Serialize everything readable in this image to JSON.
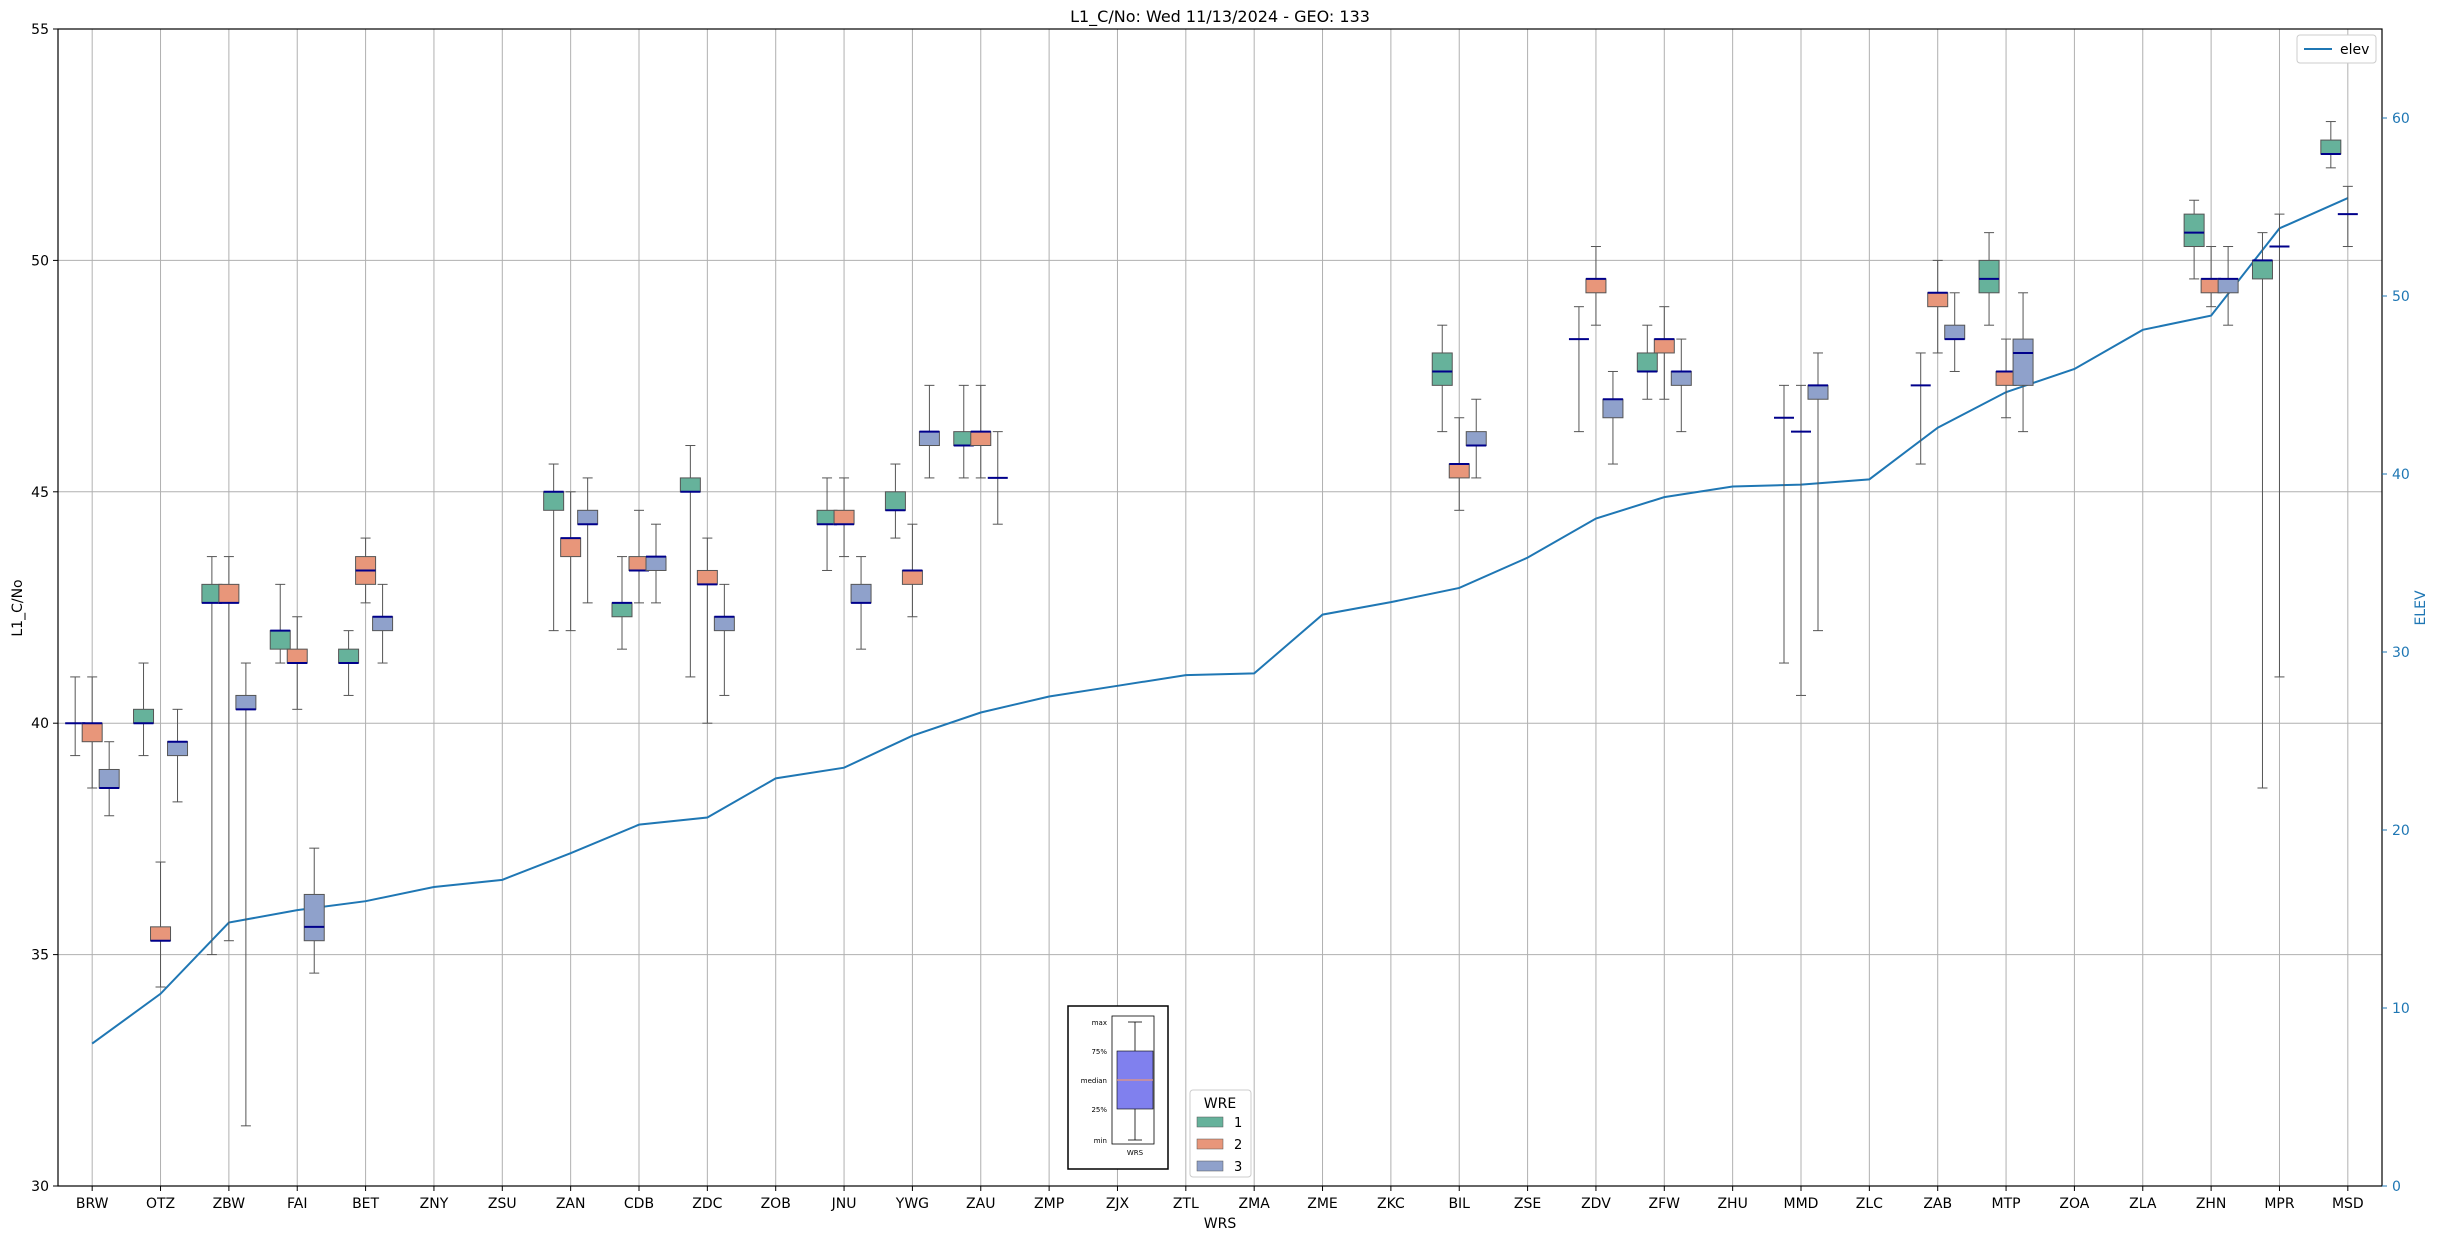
{
  "chart_data": {
    "type": "box",
    "title": "L1_C/No: Wed 11/13/2024 - GEO: 133",
    "xlabel": "WRS",
    "ylabel": "L1_C/No",
    "y2label": "ELEV",
    "ylim": [
      30,
      55
    ],
    "y2lim": [
      0,
      65
    ],
    "yticks": [
      30,
      35,
      40,
      45,
      50,
      55
    ],
    "y2ticks": [
      0,
      10,
      20,
      30,
      40,
      50,
      60
    ],
    "grid": true,
    "categories": [
      "BRW",
      "OTZ",
      "ZBW",
      "FAI",
      "BET",
      "ZNY",
      "ZSU",
      "ZAN",
      "CDB",
      "ZDC",
      "ZOB",
      "JNU",
      "YWG",
      "ZAU",
      "ZMP",
      "ZJX",
      "ZTL",
      "ZMA",
      "ZME",
      "ZKC",
      "BIL",
      "ZSE",
      "ZDV",
      "ZFW",
      "ZHU",
      "MMD",
      "ZLC",
      "ZAB",
      "MTP",
      "ZOA",
      "ZLA",
      "ZHN",
      "MPR",
      "MSD"
    ],
    "elev_series": {
      "name": "elev",
      "values": [
        8,
        10.8,
        14.8,
        15.5,
        16,
        16.8,
        17.2,
        18.7,
        20.3,
        20.7,
        22.9,
        23.5,
        25.3,
        26.6,
        27.5,
        28.1,
        28.7,
        28.8,
        32.1,
        32.8,
        33.6,
        35.3,
        37.5,
        38.7,
        39.3,
        39.4,
        39.7,
        42.6,
        44.6,
        45.9,
        48.1,
        48.9,
        53.8,
        55.5
      ]
    },
    "wre_series": [
      {
        "wre": "1",
        "color": "#66b29b",
        "boxes": [
          {
            "cat": "BRW",
            "min": 39.3,
            "q1": 40,
            "med": 40,
            "q3": 40,
            "max": 41
          },
          {
            "cat": "OTZ",
            "min": 39.3,
            "q1": 40,
            "med": 40,
            "q3": 40.3,
            "max": 41.3
          },
          {
            "cat": "ZBW",
            "min": 35,
            "q1": 42.6,
            "med": 42.6,
            "q3": 43,
            "max": 43.6
          },
          {
            "cat": "FAI",
            "min": 41.3,
            "q1": 41.6,
            "med": 42,
            "q3": 42,
            "max": 43
          },
          {
            "cat": "BET",
            "min": 40.6,
            "q1": 41.3,
            "med": 41.3,
            "q3": 41.6,
            "max": 42
          },
          {
            "cat": "ZAN",
            "min": 42,
            "q1": 44.6,
            "med": 45,
            "q3": 45,
            "max": 45.6
          },
          {
            "cat": "CDB",
            "min": 41.6,
            "q1": 42.3,
            "med": 42.6,
            "q3": 42.6,
            "max": 43.6
          },
          {
            "cat": "ZDC",
            "min": 41,
            "q1": 45,
            "med": 45,
            "q3": 45.3,
            "max": 46
          },
          {
            "cat": "JNU",
            "min": 43.3,
            "q1": 44.3,
            "med": 44.3,
            "q3": 44.6,
            "max": 45.3
          },
          {
            "cat": "YWG",
            "min": 44,
            "q1": 44.6,
            "med": 44.6,
            "q3": 45,
            "max": 45.6
          },
          {
            "cat": "ZAU",
            "min": 45.3,
            "q1": 46,
            "med": 46,
            "q3": 46.3,
            "max": 47.3
          },
          {
            "cat": "BIL",
            "min": 46.3,
            "q1": 47.3,
            "med": 47.6,
            "q3": 48,
            "max": 48.6
          },
          {
            "cat": "ZDV",
            "min": 46.3,
            "q1": 48.3,
            "med": 48.3,
            "q3": 48.3,
            "max": 49
          },
          {
            "cat": "ZFW",
            "min": 47,
            "q1": 47.6,
            "med": 47.6,
            "q3": 48,
            "max": 48.6
          },
          {
            "cat": "MMD",
            "min": 41.3,
            "q1": 46.6,
            "med": 46.6,
            "q3": 46.6,
            "max": 47.3
          },
          {
            "cat": "ZAB",
            "min": 45.6,
            "q1": 47.3,
            "med": 47.3,
            "q3": 47.3,
            "max": 48
          },
          {
            "cat": "MTP",
            "min": 48.6,
            "q1": 49.3,
            "med": 49.6,
            "q3": 50,
            "max": 50.6
          },
          {
            "cat": "ZHN",
            "min": 49.6,
            "q1": 50.3,
            "med": 50.6,
            "q3": 51,
            "max": 51.3
          },
          {
            "cat": "MPR",
            "min": 38.6,
            "q1": 49.6,
            "med": 50,
            "q3": 50,
            "max": 50.6
          },
          {
            "cat": "MSD",
            "min": 52,
            "q1": 52.3,
            "med": 52.3,
            "q3": 52.6,
            "max": 53
          }
        ]
      },
      {
        "wre": "2",
        "color": "#e8967a",
        "boxes": [
          {
            "cat": "BRW",
            "min": 38.6,
            "q1": 39.6,
            "med": 40,
            "q3": 40,
            "max": 41
          },
          {
            "cat": "OTZ",
            "min": 34.3,
            "q1": 35.3,
            "med": 35.3,
            "q3": 35.6,
            "max": 37
          },
          {
            "cat": "ZBW",
            "min": 35.3,
            "q1": 42.6,
            "med": 42.6,
            "q3": 43,
            "max": 43.6
          },
          {
            "cat": "FAI",
            "min": 40.3,
            "q1": 41.3,
            "med": 41.3,
            "q3": 41.6,
            "max": 42.3
          },
          {
            "cat": "BET",
            "min": 42.6,
            "q1": 43,
            "med": 43.3,
            "q3": 43.6,
            "max": 44
          },
          {
            "cat": "ZAN",
            "min": 42,
            "q1": 43.6,
            "med": 44,
            "q3": 44,
            "max": 45
          },
          {
            "cat": "CDB",
            "min": 42.6,
            "q1": 43.3,
            "med": 43.3,
            "q3": 43.6,
            "max": 44.6
          },
          {
            "cat": "ZDC",
            "min": 40,
            "q1": 43,
            "med": 43,
            "q3": 43.3,
            "max": 44
          },
          {
            "cat": "JNU",
            "min": 43.6,
            "q1": 44.3,
            "med": 44.3,
            "q3": 44.6,
            "max": 45.3
          },
          {
            "cat": "YWG",
            "min": 42.3,
            "q1": 43,
            "med": 43.3,
            "q3": 43.3,
            "max": 44.3
          },
          {
            "cat": "ZAU",
            "min": 45.3,
            "q1": 46,
            "med": 46.3,
            "q3": 46.3,
            "max": 47.3
          },
          {
            "cat": "BIL",
            "min": 44.6,
            "q1": 45.3,
            "med": 45.6,
            "q3": 45.6,
            "max": 46.6
          },
          {
            "cat": "ZDV",
            "min": 48.6,
            "q1": 49.3,
            "med": 49.6,
            "q3": 49.6,
            "max": 50.3
          },
          {
            "cat": "ZFW",
            "min": 47,
            "q1": 48,
            "med": 48.3,
            "q3": 48.3,
            "max": 49
          },
          {
            "cat": "MMD",
            "min": 40.6,
            "q1": 46.3,
            "med": 46.3,
            "q3": 46.3,
            "max": 47.3
          },
          {
            "cat": "ZAB",
            "min": 48,
            "q1": 49,
            "med": 49.3,
            "q3": 49.3,
            "max": 50
          },
          {
            "cat": "MTP",
            "min": 46.6,
            "q1": 47.3,
            "med": 47.6,
            "q3": 47.6,
            "max": 48.3
          },
          {
            "cat": "ZHN",
            "min": 49,
            "q1": 49.3,
            "med": 49.6,
            "q3": 49.6,
            "max": 50.3
          },
          {
            "cat": "MPR",
            "min": 41,
            "q1": 50.3,
            "med": 50.3,
            "q3": 50.3,
            "max": 51
          },
          {
            "cat": "MSD",
            "min": 50.3,
            "q1": 51,
            "med": 51,
            "q3": 51,
            "max": 51.6
          }
        ]
      },
      {
        "wre": "3",
        "color": "#8fa1cb",
        "boxes": [
          {
            "cat": "BRW",
            "min": 38,
            "q1": 38.6,
            "med": 38.6,
            "q3": 39,
            "max": 39.6
          },
          {
            "cat": "OTZ",
            "min": 38.3,
            "q1": 39.3,
            "med": 39.6,
            "q3": 39.6,
            "max": 40.3
          },
          {
            "cat": "ZBW",
            "min": 31.3,
            "q1": 40.3,
            "med": 40.3,
            "q3": 40.6,
            "max": 41.3
          },
          {
            "cat": "FAI",
            "min": 34.6,
            "q1": 35.3,
            "med": 35.6,
            "q3": 36.3,
            "max": 37.3
          },
          {
            "cat": "BET",
            "min": 41.3,
            "q1": 42,
            "med": 42.3,
            "q3": 42.3,
            "max": 43
          },
          {
            "cat": "ZAN",
            "min": 42.6,
            "q1": 44.3,
            "med": 44.3,
            "q3": 44.6,
            "max": 45.3
          },
          {
            "cat": "CDB",
            "min": 42.6,
            "q1": 43.3,
            "med": 43.6,
            "q3": 43.6,
            "max": 44.3
          },
          {
            "cat": "ZDC",
            "min": 40.6,
            "q1": 42,
            "med": 42.3,
            "q3": 42.3,
            "max": 43
          },
          {
            "cat": "JNU",
            "min": 41.6,
            "q1": 42.6,
            "med": 42.6,
            "q3": 43,
            "max": 43.6
          },
          {
            "cat": "YWG",
            "min": 45.3,
            "q1": 46,
            "med": 46.3,
            "q3": 46.3,
            "max": 47.3
          },
          {
            "cat": "ZAU",
            "min": 44.3,
            "q1": 45.3,
            "med": 45.3,
            "q3": 45.3,
            "max": 46.3
          },
          {
            "cat": "BIL",
            "min": 45.3,
            "q1": 46,
            "med": 46,
            "q3": 46.3,
            "max": 47
          },
          {
            "cat": "ZDV",
            "min": 45.6,
            "q1": 46.6,
            "med": 47,
            "q3": 47,
            "max": 47.6
          },
          {
            "cat": "ZFW",
            "min": 46.3,
            "q1": 47.3,
            "med": 47.6,
            "q3": 47.6,
            "max": 48.3
          },
          {
            "cat": "MMD",
            "min": 42,
            "q1": 47,
            "med": 47.3,
            "q3": 47.3,
            "max": 48
          },
          {
            "cat": "ZAB",
            "min": 47.6,
            "q1": 48.3,
            "med": 48.3,
            "q3": 48.6,
            "max": 49.3
          },
          {
            "cat": "MTP",
            "min": 46.3,
            "q1": 47.3,
            "med": 48,
            "q3": 48.3,
            "max": 49.3
          },
          {
            "cat": "ZHN",
            "min": 48.6,
            "q1": 49.3,
            "med": 49.6,
            "q3": 49.6,
            "max": 50.3
          }
        ]
      }
    ],
    "legend_elev": {
      "label": "elev",
      "placement": "top-right"
    },
    "legend_wre": {
      "title": "WRE",
      "entries": [
        "1",
        "2",
        "3"
      ],
      "placement": "bottom-center"
    },
    "box_key": {
      "labels": [
        "max",
        "75%",
        "median",
        "25%",
        "min"
      ],
      "caption": "WRS"
    },
    "colors": {
      "elev_line": "#1f77b4",
      "median": "#00008b",
      "grid": "#b0b0b0",
      "key_box": "#8080ee",
      "key_median": "#e8967a"
    }
  }
}
